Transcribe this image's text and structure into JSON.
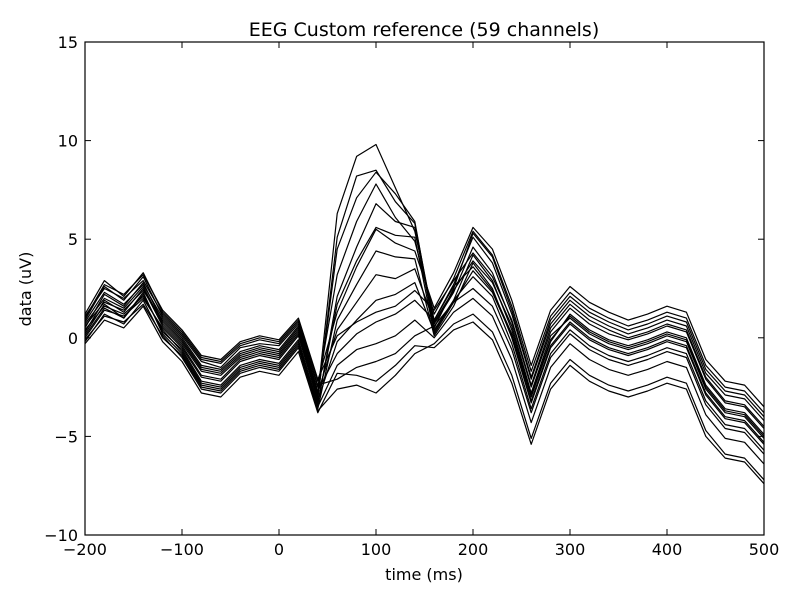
{
  "chart_data": {
    "type": "line",
    "title": "EEG Custom reference (59 channels)",
    "xlabel": "time (ms)",
    "ylabel": "data (uV)",
    "xlim": [
      -200,
      500
    ],
    "ylim": [
      -10,
      15
    ],
    "x_ticks": [
      -200,
      -100,
      0,
      100,
      200,
      300,
      400,
      500
    ],
    "y_ticks": [
      -10,
      -5,
      0,
      5,
      10,
      15
    ],
    "x_tick_labels": [
      "−200",
      "−100",
      "0",
      "100",
      "200",
      "300",
      "400",
      "500"
    ],
    "y_tick_labels": [
      "−10",
      "−5",
      "0",
      "5",
      "10",
      "15"
    ],
    "grid": false,
    "line_color": "#000000",
    "channel_count": 59,
    "x": [
      -200,
      -180,
      -160,
      -140,
      -120,
      -100,
      -80,
      -60,
      -40,
      -20,
      0,
      20,
      40,
      60,
      80,
      100,
      120,
      140,
      160,
      180,
      200,
      220,
      240,
      260,
      280,
      300,
      320,
      340,
      360,
      380,
      400,
      420,
      440,
      460,
      480,
      500
    ],
    "series": [
      {
        "values": [
          0.5,
          2.2,
          1.6,
          2.8,
          0.8,
          -0.2,
          -1.6,
          -1.8,
          -0.9,
          -0.6,
          -0.8,
          0.4,
          -2.9,
          6.3,
          9.2,
          9.8,
          7.6,
          5.4,
          0.9,
          2.7,
          5.1,
          3.8,
          1.2,
          -2.1,
          0.7,
          1.9,
          1.1,
          0.6,
          0.2,
          0.5,
          0.9,
          0.6,
          -1.8,
          -2.9,
          -3.1,
          -4.2
        ]
      },
      {
        "values": [
          0.3,
          1.9,
          1.3,
          2.5,
          0.6,
          -0.4,
          -1.9,
          -2.1,
          -1.1,
          -0.8,
          -1.0,
          0.2,
          -3.1,
          5.1,
          8.2,
          8.5,
          6.9,
          5.8,
          0.7,
          2.3,
          4.6,
          3.3,
          0.8,
          -2.5,
          0.3,
          1.5,
          0.7,
          0.2,
          -0.1,
          0.2,
          0.6,
          0.3,
          -2.1,
          -3.3,
          -3.5,
          -4.6
        ]
      },
      {
        "values": [
          0.9,
          2.6,
          1.9,
          3.1,
          1.1,
          0.1,
          -1.2,
          -1.5,
          -0.5,
          -0.3,
          -0.4,
          0.7,
          -2.5,
          3.2,
          5.9,
          7.8,
          6.1,
          4.9,
          1.2,
          3.0,
          5.4,
          4.2,
          1.6,
          -1.7,
          1.1,
          2.3,
          1.5,
          1.0,
          0.6,
          0.9,
          1.3,
          1.0,
          -1.4,
          -2.5,
          -2.7,
          -3.8
        ]
      },
      {
        "values": [
          0.1,
          1.5,
          1.0,
          2.2,
          0.3,
          -0.6,
          -2.2,
          -2.4,
          -1.4,
          -1.1,
          -1.3,
          -0.1,
          -3.4,
          2.1,
          4.6,
          6.8,
          5.9,
          5.6,
          0.4,
          1.9,
          4.2,
          2.9,
          0.4,
          -2.9,
          -0.1,
          1.1,
          0.3,
          -0.2,
          -0.5,
          -0.2,
          0.2,
          -0.1,
          -2.5,
          -3.7,
          -3.9,
          -5.0
        ]
      },
      {
        "values": [
          1.2,
          2.9,
          2.1,
          3.3,
          1.3,
          0.3,
          -1.0,
          -1.2,
          -0.3,
          0.0,
          -0.2,
          0.9,
          -2.2,
          1.3,
          3.6,
          5.5,
          4.8,
          4.4,
          1.5,
          3.3,
          5.6,
          4.5,
          1.9,
          -1.4,
          1.4,
          2.6,
          1.8,
          1.3,
          0.9,
          1.2,
          1.6,
          1.3,
          -1.1,
          -2.2,
          -2.4,
          -3.5
        ]
      },
      {
        "values": [
          -0.2,
          1.2,
          0.7,
          1.9,
          0.0,
          -0.9,
          -2.5,
          -2.7,
          -1.7,
          -1.4,
          -1.6,
          -0.4,
          -3.6,
          0.9,
          2.7,
          4.4,
          4.1,
          4.0,
          0.1,
          1.6,
          3.8,
          2.5,
          0.0,
          -3.3,
          -0.5,
          0.7,
          -0.1,
          -0.6,
          -0.9,
          -0.6,
          -0.2,
          -0.5,
          -2.9,
          -4.1,
          -4.3,
          -5.4
        ]
      },
      {
        "values": [
          0.6,
          1.8,
          1.4,
          2.4,
          0.9,
          -0.1,
          -1.5,
          -1.7,
          -0.8,
          -0.5,
          -0.7,
          0.5,
          -2.8,
          0.4,
          1.8,
          3.2,
          3.0,
          3.5,
          0.8,
          2.4,
          3.9,
          2.8,
          0.6,
          -2.8,
          0.1,
          1.0,
          0.2,
          -0.3,
          -0.6,
          -0.3,
          0.1,
          -0.2,
          -2.6,
          -3.8,
          -4.0,
          -5.1
        ]
      },
      {
        "values": [
          0.0,
          1.4,
          1.1,
          2.0,
          0.5,
          -0.5,
          -2.0,
          -2.2,
          -1.2,
          -0.9,
          -1.1,
          0.1,
          -3.2,
          -0.2,
          0.9,
          1.9,
          2.2,
          2.8,
          0.3,
          1.9,
          3.1,
          2.1,
          -0.3,
          -3.6,
          -0.8,
          0.4,
          -0.4,
          -0.9,
          -1.2,
          -0.9,
          -0.5,
          -0.8,
          -3.2,
          -4.4,
          -4.6,
          -5.7
        ]
      },
      {
        "values": [
          0.8,
          2.3,
          1.7,
          2.7,
          1.0,
          0.0,
          -1.4,
          -1.6,
          -0.7,
          -0.4,
          -0.6,
          0.6,
          -2.7,
          -0.8,
          0.2,
          0.8,
          1.2,
          1.9,
          0.9,
          2.6,
          3.6,
          2.4,
          0.2,
          -3.0,
          -0.2,
          1.2,
          0.4,
          -0.1,
          -0.4,
          -0.1,
          0.3,
          0.0,
          -2.4,
          -3.6,
          -3.8,
          -4.9
        ]
      },
      {
        "values": [
          0.4,
          1.6,
          1.2,
          2.1,
          0.4,
          -0.7,
          -2.3,
          -2.5,
          -1.5,
          -1.2,
          -1.4,
          -0.2,
          -3.5,
          -1.4,
          -0.6,
          -0.3,
          0.1,
          0.9,
          0.0,
          1.3,
          2.0,
          1.1,
          -1.1,
          -4.3,
          -1.5,
          -0.3,
          -1.1,
          -1.6,
          -1.9,
          -1.6,
          -1.2,
          -1.5,
          -3.9,
          -5.1,
          -5.3,
          -6.4
        ]
      },
      {
        "values": [
          1.1,
          2.5,
          2.0,
          2.9,
          1.2,
          0.2,
          -1.1,
          -1.3,
          -0.4,
          -0.1,
          -0.3,
          0.8,
          -2.4,
          -2.1,
          -1.5,
          -1.2,
          -0.8,
          0.1,
          0.6,
          1.8,
          2.5,
          1.6,
          -0.6,
          -3.8,
          -1.0,
          0.2,
          -0.6,
          -1.1,
          -1.4,
          -1.1,
          -0.7,
          -1.0,
          -3.4,
          -4.6,
          -4.8,
          -5.9
        ]
      },
      {
        "values": [
          -0.1,
          1.1,
          0.8,
          1.7,
          0.1,
          -1.0,
          -2.6,
          -2.8,
          -1.8,
          -1.5,
          -1.7,
          -0.5,
          -3.7,
          -2.6,
          -2.4,
          -2.8,
          -1.9,
          -0.8,
          -0.3,
          0.7,
          1.2,
          0.3,
          -1.9,
          -5.1,
          -2.3,
          -1.1,
          -1.9,
          -2.4,
          -2.7,
          -2.4,
          -2.0,
          -2.3,
          -4.7,
          -5.9,
          -6.1,
          -7.2
        ]
      },
      {
        "values": [
          0.7,
          2.0,
          1.5,
          2.6,
          0.7,
          -0.3,
          -1.7,
          -1.9,
          -1.0,
          -0.7,
          -0.9,
          0.3,
          -3.0,
          4.5,
          7.1,
          8.4,
          7.3,
          5.9,
          0.5,
          2.5,
          5.3,
          4.1,
          1.4,
          -2.0,
          0.9,
          2.1,
          1.3,
          0.8,
          0.4,
          0.7,
          1.1,
          0.8,
          -1.6,
          -2.7,
          -2.9,
          -4.0
        ]
      },
      {
        "values": [
          0.2,
          1.7,
          1.0,
          2.3,
          0.2,
          -0.8,
          -2.4,
          -2.6,
          -1.6,
          -1.3,
          -1.5,
          -0.3,
          -3.3,
          1.7,
          3.9,
          5.6,
          5.2,
          5.1,
          0.2,
          1.8,
          3.4,
          2.3,
          0.1,
          -3.2,
          -0.4,
          0.8,
          0.0,
          -0.5,
          -0.8,
          -0.5,
          -0.1,
          -0.4,
          -2.8,
          -4.0,
          -4.2,
          -5.3
        ]
      },
      {
        "values": [
          1.0,
          2.7,
          2.2,
          3.2,
          1.4,
          0.4,
          -0.9,
          -1.1,
          -0.2,
          0.1,
          -0.1,
          1.0,
          -2.1,
          0.1,
          0.8,
          1.3,
          1.6,
          2.4,
          1.4,
          2.9,
          4.3,
          3.1,
          0.9,
          -2.4,
          0.5,
          1.7,
          0.9,
          0.4,
          0.0,
          0.3,
          0.7,
          0.4,
          -2.0,
          -3.2,
          -3.4,
          -4.5
        ]
      },
      {
        "values": [
          -0.3,
          0.9,
          0.5,
          1.6,
          -0.2,
          -1.2,
          -2.8,
          -3.0,
          -2.0,
          -1.7,
          -1.9,
          -0.7,
          -3.8,
          -1.8,
          -1.9,
          -2.2,
          -1.4,
          -0.4,
          -0.5,
          0.4,
          0.8,
          -0.1,
          -2.3,
          -5.4,
          -2.6,
          -1.4,
          -2.2,
          -2.7,
          -3.0,
          -2.7,
          -2.3,
          -2.6,
          -5.0,
          -6.1,
          -6.3,
          -7.4
        ]
      }
    ]
  }
}
